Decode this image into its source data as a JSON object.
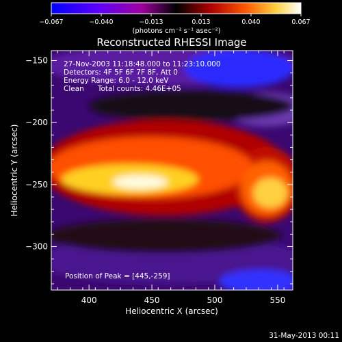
{
  "chart_data": {
    "type": "heatmap",
    "title": "Reconstructed RHESSI Image",
    "xlabel": "Heliocentric X (arcsec)",
    "ylabel": "Heliocentric Y (arcsec)",
    "xlim": [
      370,
      562
    ],
    "ylim": [
      -335,
      -142
    ],
    "x_ticks": [
      400,
      450,
      500,
      550
    ],
    "y_ticks": [
      -150,
      -200,
      -250,
      -300
    ],
    "x_tick_labels": [
      "400",
      "450",
      "500",
      "550"
    ],
    "y_tick_labels": [
      "−150",
      "−200",
      "−250",
      "−300"
    ],
    "colorbar": {
      "range": [
        -0.067,
        0.067
      ],
      "tick_labels": [
        "−0.067",
        "−0.040",
        "−0.013",
        "0.013",
        "0.040",
        "0.067"
      ],
      "units": "(photons cm⁻² s⁻¹ asec⁻²)",
      "stops": [
        "#0000ff",
        "#5a00ff",
        "#b000c0",
        "#000000",
        "#b00000",
        "#ff5a00",
        "#ffd040",
        "#ffffff"
      ]
    },
    "annotations": [
      "27-Nov-2003 11:18:48.000 to 11:23:10.000",
      "Detectors: 4F 5F 6F 7F 8F, Att 0",
      "Energy Range: 6.0 - 12.0 keV",
      "Clean      Total counts: 4.46E+05"
    ],
    "peak_label": "Position of Peak = [445,-259]",
    "peak": [
      445,
      -259
    ]
  },
  "footer": {
    "date": "31-May-2013 00:11"
  }
}
